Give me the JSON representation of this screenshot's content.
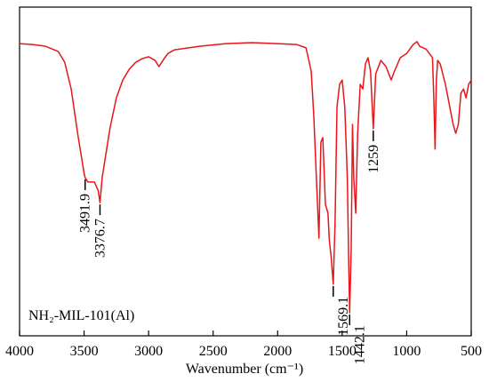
{
  "chart_data": {
    "type": "line",
    "xlabel": "Wavenumber (cm⁻¹)",
    "annotation": "NH₂-MIL-101(Al)",
    "color": "#e8161b",
    "xlim": [
      4000,
      500
    ],
    "xticks": [
      4000,
      3500,
      3000,
      2500,
      2000,
      1500,
      1000,
      500
    ],
    "ylim": [
      0,
      100
    ],
    "x": [
      4000,
      3900,
      3800,
      3700,
      3650,
      3600,
      3550,
      3500,
      3491.9,
      3470,
      3420,
      3390,
      3376.7,
      3360,
      3300,
      3250,
      3200,
      3150,
      3100,
      3050,
      3000,
      2950,
      2920,
      2880,
      2850,
      2800,
      2600,
      2400,
      2200,
      2000,
      1850,
      1780,
      1740,
      1720,
      1700,
      1680,
      1665,
      1650,
      1630,
      1610,
      1600,
      1585,
      1569.1,
      1555,
      1540,
      1520,
      1500,
      1480,
      1460,
      1450,
      1442.1,
      1430,
      1420,
      1410,
      1395,
      1380,
      1360,
      1340,
      1320,
      1300,
      1280,
      1259,
      1240,
      1200,
      1160,
      1120,
      1100,
      1050,
      1000,
      950,
      920,
      900,
      850,
      800,
      790,
      780,
      770,
      760,
      740,
      700,
      660,
      640,
      620,
      600,
      580,
      560,
      540,
      520,
      500
    ],
    "values": [
      88.9,
      88.6,
      88.1,
      86.5,
      83.2,
      75.1,
      61.6,
      49.5,
      48.1,
      46.8,
      46.8,
      44.1,
      40.5,
      48.1,
      63.0,
      72.4,
      77.8,
      81.1,
      83.2,
      84.3,
      84.9,
      83.8,
      81.9,
      84.3,
      85.9,
      87.0,
      88.1,
      88.9,
      89.2,
      88.9,
      88.6,
      87.6,
      80.5,
      67.0,
      48.1,
      29.7,
      58.9,
      60.3,
      40.0,
      37.3,
      29.2,
      23.8,
      15.7,
      34.6,
      69.7,
      76.5,
      77.8,
      69.7,
      48.1,
      23.8,
      7.0,
      26.5,
      64.3,
      48.1,
      37.3,
      61.6,
      76.5,
      75.1,
      82.7,
      84.6,
      80.5,
      63.0,
      79.7,
      83.8,
      81.9,
      77.8,
      80.0,
      84.6,
      85.9,
      88.6,
      89.5,
      88.1,
      87.2,
      84.6,
      72.4,
      56.8,
      77.8,
      83.8,
      82.7,
      76.5,
      68.4,
      64.3,
      61.6,
      64.3,
      73.8,
      75.1,
      72.4,
      76.5,
      77.8
    ],
    "peaks": [
      {
        "x": 3491.9,
        "y": 48.1
      },
      {
        "x": 3376.7,
        "y": 40.5
      },
      {
        "x": 1569.1,
        "y": 15.7
      },
      {
        "x": 1442.1,
        "y": 7.0
      },
      {
        "x": 1259,
        "y": 63.0
      }
    ]
  }
}
